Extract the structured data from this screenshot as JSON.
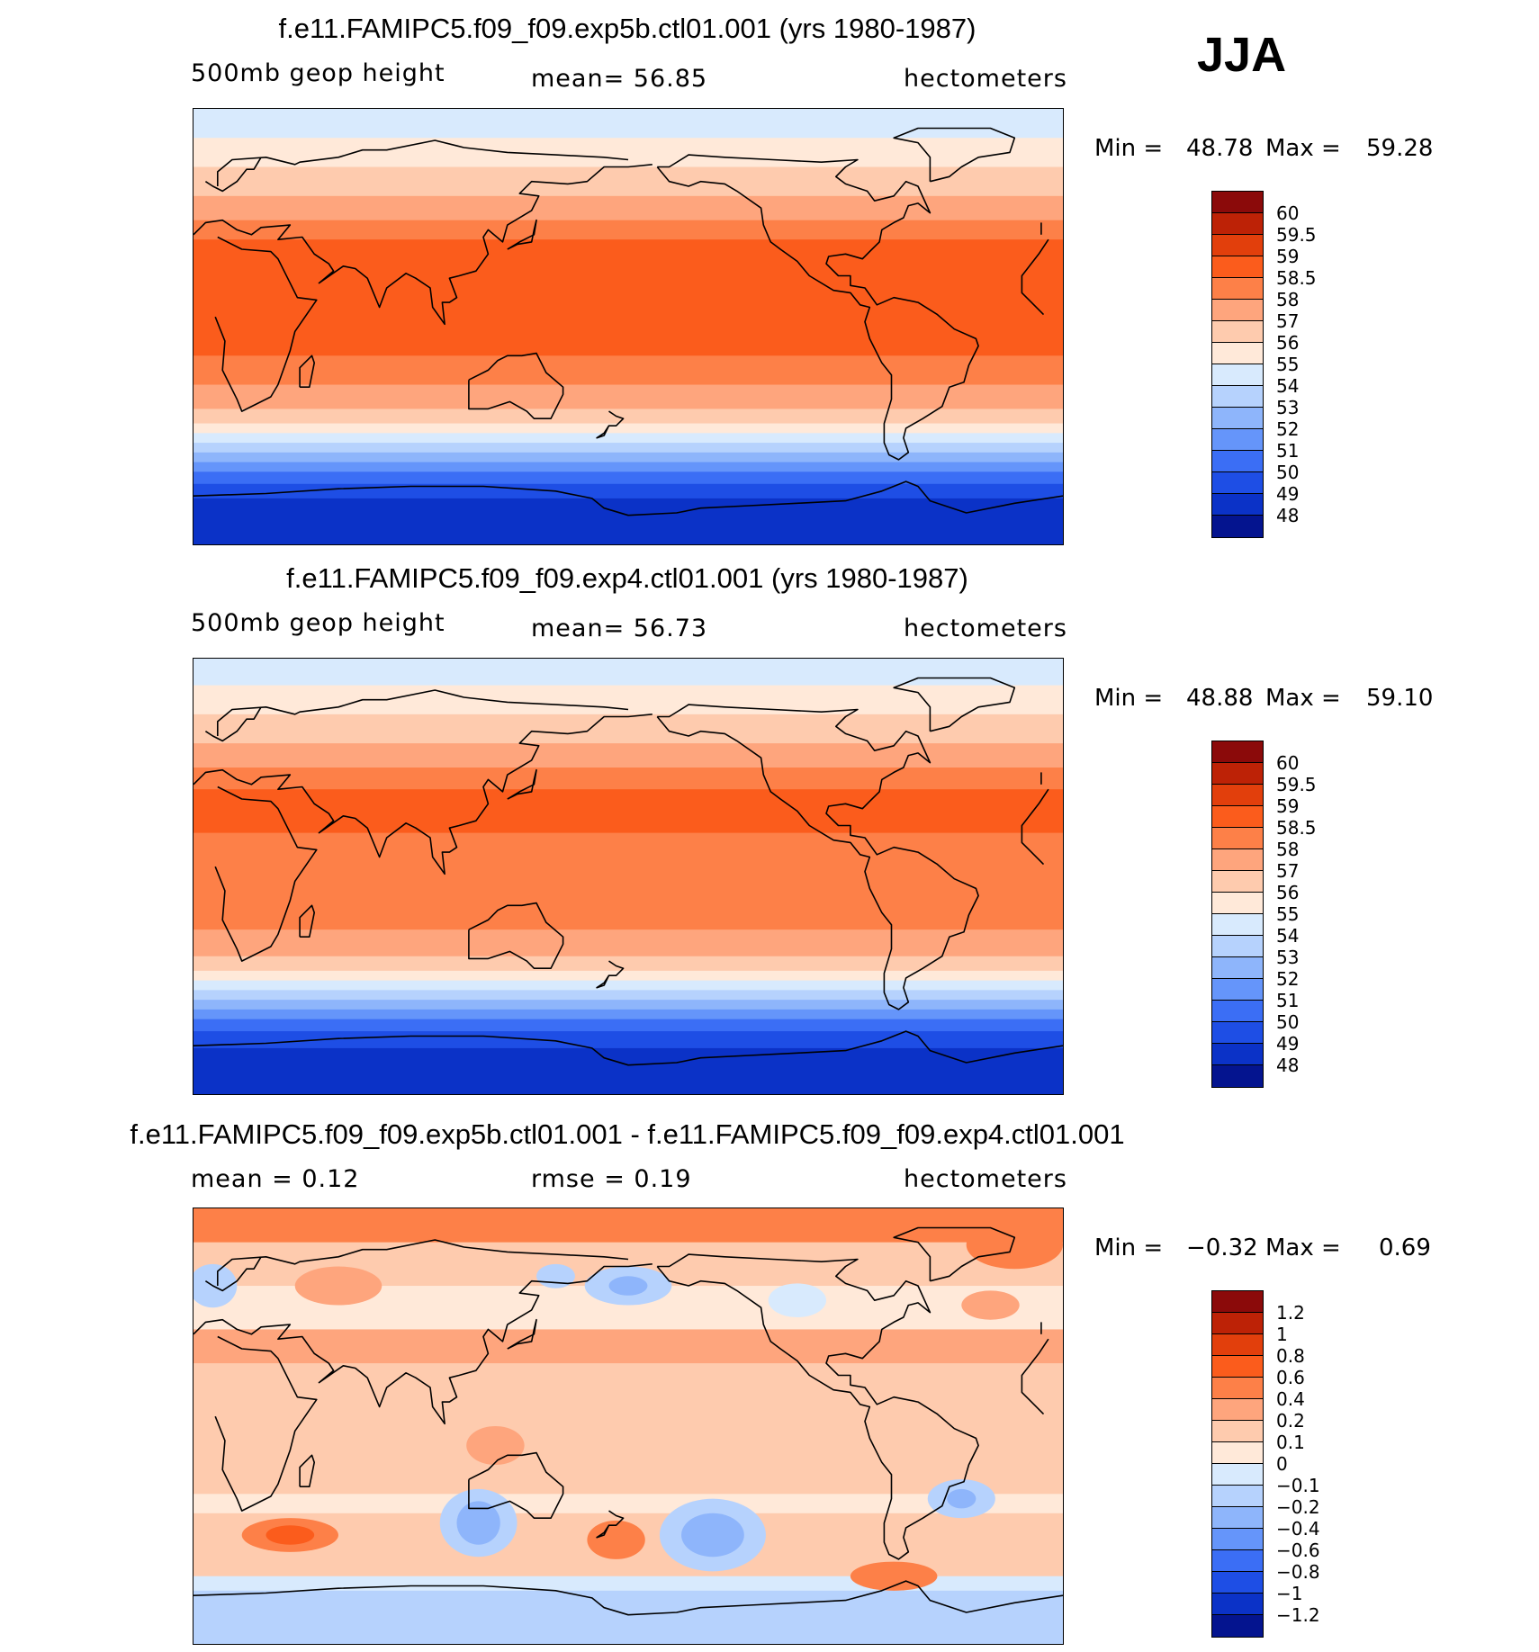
{
  "season": "JJA",
  "panels": [
    {
      "title": "f.e11.FAMIPC5.f09_f09.exp5b.ctl01.001 (yrs 1980-1987)",
      "left_label": "500mb geop height",
      "mid_label": "mean=  56.85",
      "right_label": "hectometers",
      "min_label": "Min =",
      "min_value": "48.78",
      "max_label": "Max =",
      "max_value": "59.28",
      "colorbar": {
        "colors": [
          "#8b0a0a",
          "#bd2206",
          "#e23f0c",
          "#fb5c1c",
          "#fd8048",
          "#fea57d",
          "#fecbae",
          "#ffe9d9",
          "#d8eafd",
          "#b6d2fd",
          "#8eb5fb",
          "#6595fa",
          "#3b6ef5",
          "#1e4ee5",
          "#0b32c7",
          "#04148f"
        ],
        "labels": [
          "60",
          "59.5",
          "59",
          "58.5",
          "58",
          "57",
          "56",
          "55",
          "54",
          "53",
          "52",
          "51",
          "50",
          "49",
          "48"
        ]
      },
      "map_field": {
        "type": "zonal-geopotential",
        "bands": [
          {
            "lat_from": 90,
            "lat_to": 78,
            "color": "#d8eafd"
          },
          {
            "lat_from": 78,
            "lat_to": 66,
            "color": "#ffe9d9"
          },
          {
            "lat_from": 66,
            "lat_to": 54,
            "color": "#fecbae"
          },
          {
            "lat_from": 54,
            "lat_to": 44,
            "color": "#fea57d"
          },
          {
            "lat_from": 44,
            "lat_to": 36,
            "color": "#fd8048"
          },
          {
            "lat_from": 36,
            "lat_to": -12,
            "color": "#fb5c1c"
          },
          {
            "lat_from": -12,
            "lat_to": -24,
            "color": "#fd8048"
          },
          {
            "lat_from": -24,
            "lat_to": -34,
            "color": "#fea57d"
          },
          {
            "lat_from": -34,
            "lat_to": -40,
            "color": "#fecbae"
          },
          {
            "lat_from": -40,
            "lat_to": -44,
            "color": "#ffe9d9"
          },
          {
            "lat_from": -44,
            "lat_to": -48,
            "color": "#d8eafd"
          },
          {
            "lat_from": -48,
            "lat_to": -52,
            "color": "#b6d2fd"
          },
          {
            "lat_from": -52,
            "lat_to": -56,
            "color": "#8eb5fb"
          },
          {
            "lat_from": -56,
            "lat_to": -60,
            "color": "#6595fa"
          },
          {
            "lat_from": -60,
            "lat_to": -65,
            "color": "#3b6ef5"
          },
          {
            "lat_from": -65,
            "lat_to": -71,
            "color": "#1e4ee5"
          },
          {
            "lat_from": -71,
            "lat_to": -90,
            "color": "#0b32c7"
          }
        ]
      }
    },
    {
      "title": "f.e11.FAMIPC5.f09_f09.exp4.ctl01.001 (yrs 1980-1987)",
      "left_label": "500mb geop height",
      "mid_label": "mean=  56.73",
      "right_label": "hectometers",
      "min_label": "Min =",
      "min_value": "48.88",
      "max_label": "Max =",
      "max_value": "59.10",
      "colorbar": {
        "colors": [
          "#8b0a0a",
          "#bd2206",
          "#e23f0c",
          "#fb5c1c",
          "#fd8048",
          "#fea57d",
          "#fecbae",
          "#ffe9d9",
          "#d8eafd",
          "#b6d2fd",
          "#8eb5fb",
          "#6595fa",
          "#3b6ef5",
          "#1e4ee5",
          "#0b32c7",
          "#04148f"
        ],
        "labels": [
          "60",
          "59.5",
          "59",
          "58.5",
          "58",
          "57",
          "56",
          "55",
          "54",
          "53",
          "52",
          "51",
          "50",
          "49",
          "48"
        ]
      },
      "map_field": {
        "type": "zonal-geopotential",
        "bands": [
          {
            "lat_from": 90,
            "lat_to": 79,
            "color": "#d8eafd"
          },
          {
            "lat_from": 79,
            "lat_to": 67,
            "color": "#ffe9d9"
          },
          {
            "lat_from": 67,
            "lat_to": 55,
            "color": "#fecbae"
          },
          {
            "lat_from": 55,
            "lat_to": 45,
            "color": "#fea57d"
          },
          {
            "lat_from": 45,
            "lat_to": 36,
            "color": "#fd8048"
          },
          {
            "lat_from": 36,
            "lat_to": 18,
            "color": "#fb5c1c"
          },
          {
            "lat_from": 18,
            "lat_to": -22,
            "color": "#fd8048"
          },
          {
            "lat_from": -22,
            "lat_to": -33,
            "color": "#fea57d"
          },
          {
            "lat_from": -33,
            "lat_to": -39,
            "color": "#fecbae"
          },
          {
            "lat_from": -39,
            "lat_to": -43,
            "color": "#ffe9d9"
          },
          {
            "lat_from": -43,
            "lat_to": -47,
            "color": "#d8eafd"
          },
          {
            "lat_from": -47,
            "lat_to": -51,
            "color": "#b6d2fd"
          },
          {
            "lat_from": -51,
            "lat_to": -55,
            "color": "#8eb5fb"
          },
          {
            "lat_from": -55,
            "lat_to": -59,
            "color": "#6595fa"
          },
          {
            "lat_from": -59,
            "lat_to": -64,
            "color": "#3b6ef5"
          },
          {
            "lat_from": -64,
            "lat_to": -71,
            "color": "#1e4ee5"
          },
          {
            "lat_from": -71,
            "lat_to": -90,
            "color": "#0b32c7"
          }
        ]
      }
    },
    {
      "title": "f.e11.FAMIPC5.f09_f09.exp5b.ctl01.001 - f.e11.FAMIPC5.f09_f09.exp4.ctl01.001",
      "left_label": "mean =    0.12",
      "mid_label": "rmse =    0.19",
      "right_label": "hectometers",
      "min_label": "Min =",
      "min_value": "−0.32",
      "max_label": "Max =",
      "max_value": "0.69",
      "colorbar": {
        "colors": [
          "#8b0a0a",
          "#bd2206",
          "#e23f0c",
          "#fb5c1c",
          "#fd8048",
          "#fea57d",
          "#fecbae",
          "#ffe9d9",
          "#d8eafd",
          "#b6d2fd",
          "#8eb5fb",
          "#6595fa",
          "#3b6ef5",
          "#1e4ee5",
          "#0b32c7",
          "#04148f"
        ],
        "labels": [
          "1.2",
          "1",
          "0.8",
          "0.6",
          "0.4",
          "0.2",
          "0.1",
          "0",
          "−0.1",
          "−0.2",
          "−0.4",
          "−0.6",
          "−0.8",
          "−1",
          "−1.2"
        ]
      },
      "map_field": {
        "type": "difference",
        "base_color": "#fecbae",
        "bands": [
          {
            "lat_from": 90,
            "lat_to": 76,
            "color": "#fd8048"
          },
          {
            "lat_from": 76,
            "lat_to": 58,
            "color": "#fecbae"
          },
          {
            "lat_from": 58,
            "lat_to": 40,
            "color": "#ffe9d9"
          },
          {
            "lat_from": 40,
            "lat_to": 26,
            "color": "#fea57d"
          },
          {
            "lat_from": 26,
            "lat_to": -28,
            "color": "#fecbae"
          },
          {
            "lat_from": -28,
            "lat_to": -36,
            "color": "#ffe9d9"
          },
          {
            "lat_from": -36,
            "lat_to": -62,
            "color": "#fecbae"
          },
          {
            "lat_from": -62,
            "lat_to": -68,
            "color": "#d8eafd"
          },
          {
            "lat_from": -68,
            "lat_to": -90,
            "color": "#b6d2fd"
          }
        ],
        "blobs": [
          {
            "lon": 40,
            "lat": -45,
            "rlon": 20,
            "rlat": 7,
            "color": "#fd8048"
          },
          {
            "lon": 40,
            "lat": -45,
            "rlon": 10,
            "rlat": 4,
            "color": "#fb5c1c"
          },
          {
            "lon": 118,
            "lat": -40,
            "rlon": 16,
            "rlat": 14,
            "color": "#b6d2fd"
          },
          {
            "lon": 118,
            "lat": -40,
            "rlon": 9,
            "rlat": 9,
            "color": "#8eb5fb"
          },
          {
            "lon": 175,
            "lat": -47,
            "rlon": 12,
            "rlat": 8,
            "color": "#fd8048"
          },
          {
            "lon": 215,
            "lat": -45,
            "rlon": 22,
            "rlat": 15,
            "color": "#b6d2fd"
          },
          {
            "lon": 215,
            "lat": -45,
            "rlon": 13,
            "rlat": 9,
            "color": "#8eb5fb"
          },
          {
            "lon": 290,
            "lat": -62,
            "rlon": 18,
            "rlat": 6,
            "color": "#fd8048"
          },
          {
            "lon": 318,
            "lat": -30,
            "rlon": 14,
            "rlat": 8,
            "color": "#b6d2fd"
          },
          {
            "lon": 318,
            "lat": -30,
            "rlon": 6,
            "rlat": 4,
            "color": "#8eb5fb"
          },
          {
            "lon": 180,
            "lat": 58,
            "rlon": 18,
            "rlat": 8,
            "color": "#b6d2fd"
          },
          {
            "lon": 180,
            "lat": 58,
            "rlon": 8,
            "rlat": 4,
            "color": "#8eb5fb"
          },
          {
            "lon": 150,
            "lat": 62,
            "rlon": 8,
            "rlat": 5,
            "color": "#b6d2fd"
          },
          {
            "lon": 8,
            "lat": 58,
            "rlon": 10,
            "rlat": 9,
            "color": "#b6d2fd"
          },
          {
            "lon": 60,
            "lat": 58,
            "rlon": 18,
            "rlat": 8,
            "color": "#fea57d"
          },
          {
            "lon": 250,
            "lat": 52,
            "rlon": 12,
            "rlat": 7,
            "color": "#d8eafd"
          },
          {
            "lon": 330,
            "lat": 50,
            "rlon": 12,
            "rlat": 6,
            "color": "#fea57d"
          },
          {
            "lon": 125,
            "lat": -8,
            "rlon": 12,
            "rlat": 8,
            "color": "#fea57d"
          },
          {
            "lon": 340,
            "lat": 75,
            "rlon": 20,
            "rlat": 10,
            "color": "#fd8048"
          }
        ]
      }
    }
  ]
}
